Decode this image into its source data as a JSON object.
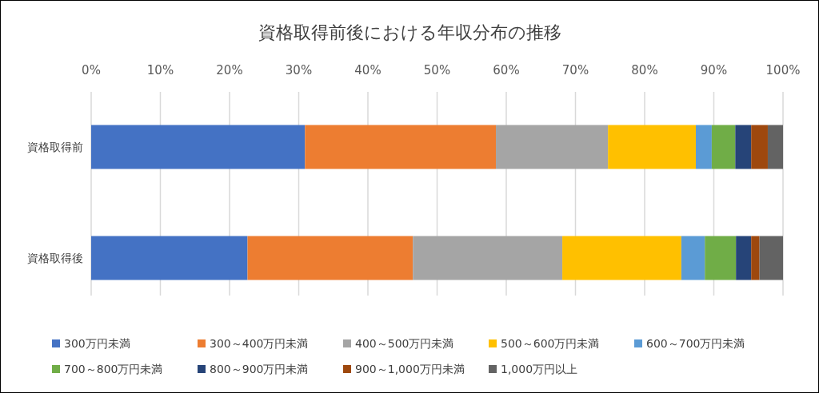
{
  "chart_data": {
    "type": "bar",
    "orientation": "horizontal",
    "stacked": true,
    "title": "資格取得前後における年収分布の推移",
    "categories": [
      "資格取得前",
      "資格取得後"
    ],
    "series": [
      {
        "name": "300万円未満",
        "color": "#4472c4",
        "values": [
          30.9,
          22.6
        ]
      },
      {
        "name": "300～400万円未満",
        "color": "#ed7d31",
        "values": [
          27.6,
          23.9
        ]
      },
      {
        "name": "400～500万円未満",
        "color": "#a5a5a5",
        "values": [
          16.2,
          21.6
        ]
      },
      {
        "name": "500～600万円未満",
        "color": "#ffc000",
        "values": [
          12.7,
          17.2
        ]
      },
      {
        "name": "600～700万円未満",
        "color": "#5b9bd5",
        "values": [
          2.3,
          3.4
        ]
      },
      {
        "name": "700～800万円未満",
        "color": "#70ad47",
        "values": [
          3.4,
          4.5
        ]
      },
      {
        "name": "800～900万円未満",
        "color": "#264478",
        "values": [
          2.3,
          2.2
        ]
      },
      {
        "name": "900～1,000万円未満",
        "color": "#9e480e",
        "values": [
          2.4,
          1.2
        ]
      },
      {
        "name": "1,000万円以上",
        "color": "#636363",
        "values": [
          2.2,
          3.4
        ]
      }
    ],
    "xlim": [
      0,
      100
    ],
    "xticks": [
      {
        "value": 0,
        "label": "0%"
      },
      {
        "value": 10,
        "label": "10%"
      },
      {
        "value": 20,
        "label": "20%"
      },
      {
        "value": 30,
        "label": "30%"
      },
      {
        "value": 40,
        "label": "40%"
      },
      {
        "value": 50,
        "label": "50%"
      },
      {
        "value": 60,
        "label": "60%"
      },
      {
        "value": 70,
        "label": "70%"
      },
      {
        "value": 80,
        "label": "80%"
      },
      {
        "value": 90,
        "label": "90%"
      },
      {
        "value": 100,
        "label": "100%"
      }
    ],
    "grid": "x",
    "legend": "bottom"
  }
}
